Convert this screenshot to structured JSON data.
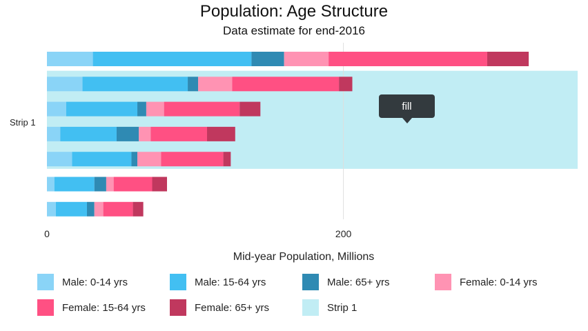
{
  "chart_data": {
    "type": "bar",
    "orientation": "horizontal",
    "stacked": true,
    "title": "Population: Age Structure",
    "subtitle": "Data estimate for end-2016",
    "xlabel": "Mid-year Population, Millions",
    "ylabel": "",
    "xlim": [
      0,
      358
    ],
    "x_ticks": [
      0,
      200
    ],
    "grid": true,
    "categories": [
      "",
      "",
      "",
      "",
      "",
      "",
      ""
    ],
    "series": [
      {
        "name": "Male: 0-14 yrs",
        "color": "#8ad4f7",
        "values": [
          31,
          24,
          13,
          9,
          17,
          5,
          6
        ]
      },
      {
        "name": "Male: 15-64 yrs",
        "color": "#42bff2",
        "values": [
          107,
          71,
          48,
          38,
          40,
          27,
          21
        ]
      },
      {
        "name": "Male: 65+ yrs",
        "color": "#2f8ab3",
        "values": [
          22,
          7,
          6,
          15,
          4,
          8,
          5
        ]
      },
      {
        "name": "Female: 0-14 yrs",
        "color": "#ff93b3",
        "values": [
          30,
          23,
          12,
          8,
          16,
          5,
          6
        ]
      },
      {
        "name": "Female: 15-64 yrs",
        "color": "#ff5083",
        "values": [
          107,
          72,
          51,
          38,
          42,
          26,
          20
        ]
      },
      {
        "name": "Female: 65+ yrs",
        "color": "#c0385e",
        "values": [
          28,
          9,
          14,
          19,
          5,
          10,
          7
        ]
      }
    ],
    "strip": {
      "name": "Strip 1",
      "label": "Strip 1",
      "color": "#c1edf4",
      "category_range": [
        1,
        4
      ],
      "x_range": [
        0,
        358
      ],
      "tooltip": "fill"
    },
    "legend": {
      "placement": "bottom",
      "items": [
        {
          "label": "Male: 0-14 yrs",
          "color": "#8ad4f7"
        },
        {
          "label": "Male: 15-64 yrs",
          "color": "#42bff2"
        },
        {
          "label": "Male: 65+ yrs",
          "color": "#2f8ab3"
        },
        {
          "label": "Female: 0-14 yrs",
          "color": "#ff93b3"
        },
        {
          "label": "Female: 15-64 yrs",
          "color": "#ff5083"
        },
        {
          "label": "Female: 65+ yrs",
          "color": "#c0385e"
        },
        {
          "label": "Strip 1",
          "color": "#c1edf4"
        }
      ]
    }
  }
}
